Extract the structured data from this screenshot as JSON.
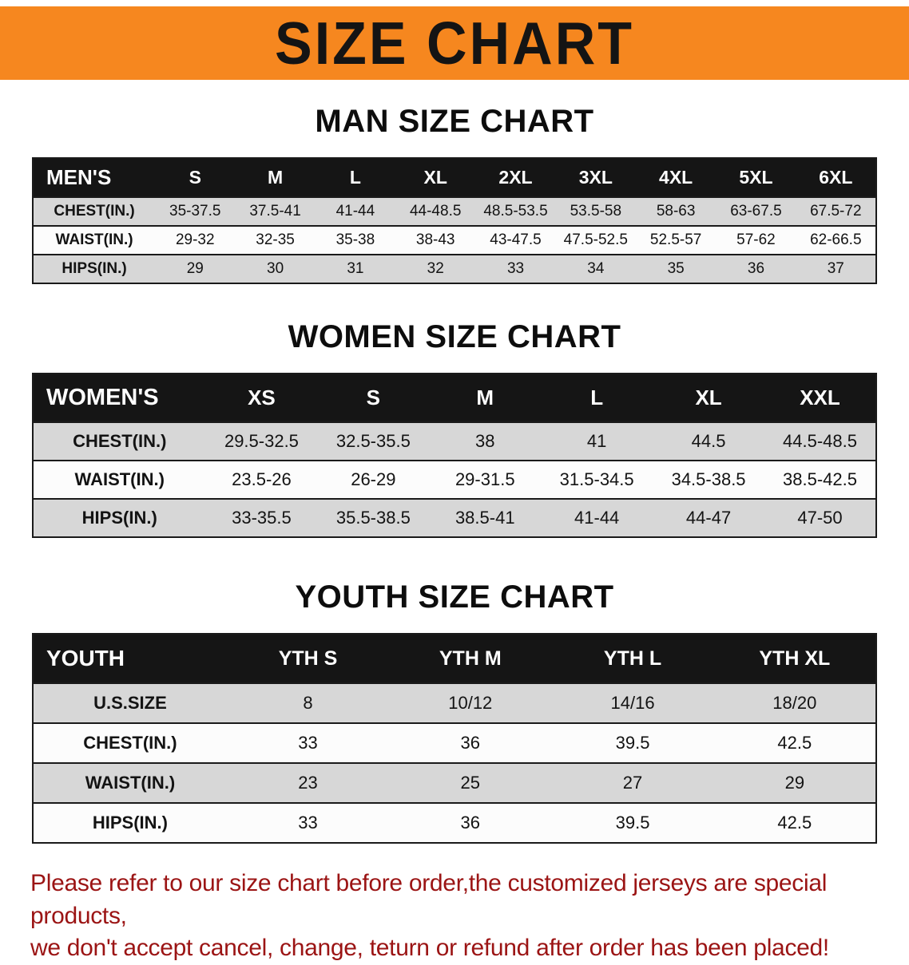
{
  "banner": {
    "title": "SIZE CHART"
  },
  "sections": [
    {
      "heading": "MAN SIZE CHART",
      "table": {
        "header": [
          "MEN'S",
          "S",
          "M",
          "L",
          "XL",
          "2XL",
          "3XL",
          "4XL",
          "5XL",
          "6XL"
        ],
        "rows": [
          [
            "CHEST(IN.)",
            "35-37.5",
            "37.5-41",
            "41-44",
            "44-48.5",
            "48.5-53.5",
            "53.5-58",
            "58-63",
            "63-67.5",
            "67.5-72"
          ],
          [
            "WAIST(IN.)",
            "29-32",
            "32-35",
            "35-38",
            "38-43",
            "43-47.5",
            "47.5-52.5",
            "52.5-57",
            "57-62",
            "62-66.5"
          ],
          [
            "HIPS(IN.)",
            "29",
            "30",
            "31",
            "32",
            "33",
            "34",
            "35",
            "36",
            "37"
          ]
        ]
      }
    },
    {
      "heading": "WOMEN SIZE CHART",
      "table": {
        "header": [
          "WOMEN'S",
          "XS",
          "S",
          "M",
          "L",
          "XL",
          "XXL"
        ],
        "rows": [
          [
            "CHEST(IN.)",
            "29.5-32.5",
            "32.5-35.5",
            "38",
            "41",
            "44.5",
            "44.5-48.5"
          ],
          [
            "WAIST(IN.)",
            "23.5-26",
            "26-29",
            "29-31.5",
            "31.5-34.5",
            "34.5-38.5",
            "38.5-42.5"
          ],
          [
            "HIPS(IN.)",
            "33-35.5",
            "35.5-38.5",
            "38.5-41",
            "41-44",
            "44-47",
            "47-50"
          ]
        ]
      }
    },
    {
      "heading": "YOUTH SIZE CHART",
      "table": {
        "header": [
          "YOUTH",
          "YTH S",
          "YTH M",
          "YTH L",
          "YTH XL"
        ],
        "rows": [
          [
            "U.S.SIZE",
            "8",
            "10/12",
            "14/16",
            "18/20"
          ],
          [
            "CHEST(IN.)",
            "33",
            "36",
            "39.5",
            "42.5"
          ],
          [
            "WAIST(IN.)",
            "23",
            "25",
            "27",
            "29"
          ],
          [
            "HIPS(IN.)",
            "33",
            "36",
            "39.5",
            "42.5"
          ]
        ]
      }
    }
  ],
  "disclaimer": {
    "line1": "Please refer to our size chart before order,the customized jerseys are special products,",
    "line2": "we don't accept cancel, change, teturn or refund after order has been placed!"
  },
  "colors": {
    "banner_bg": "#f6871f",
    "banner_text": "#141414",
    "header_bg": "#151515",
    "header_text": "#ffffff",
    "row_shaded": "#d7d7d7",
    "row_plain": "#fcfcfc",
    "border": "#1a1a1a",
    "disclaimer": "#9b1414"
  }
}
